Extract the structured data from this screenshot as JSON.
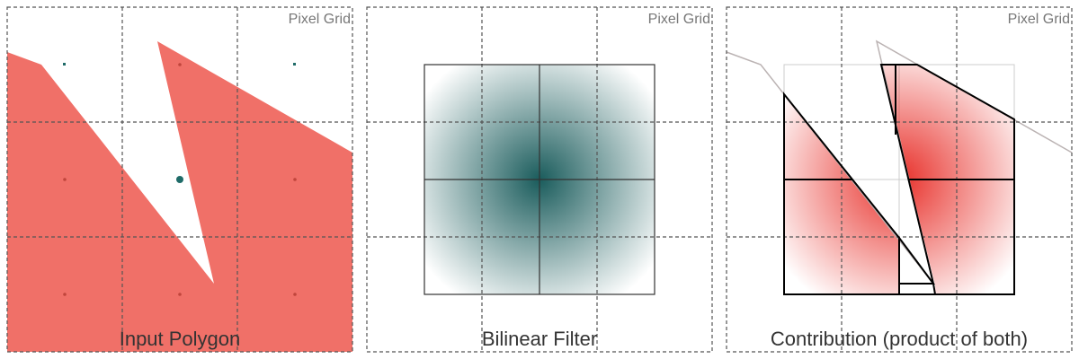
{
  "panels": [
    {
      "grid_label": "Pixel Grid",
      "title": "Input Polygon"
    },
    {
      "grid_label": "Pixel Grid",
      "title": "Bilinear Filter"
    },
    {
      "grid_label": "Pixel Grid",
      "title": "Contribution (product of both)"
    }
  ],
  "colors": {
    "polygon": "#f07068",
    "filter": "#1a5c5c",
    "contribution": "#e8302a",
    "grid": "#555555",
    "outline_faint": "#bbb3b3",
    "dot_teal": "#1f6b68",
    "dot_red": "#c0453c"
  }
}
